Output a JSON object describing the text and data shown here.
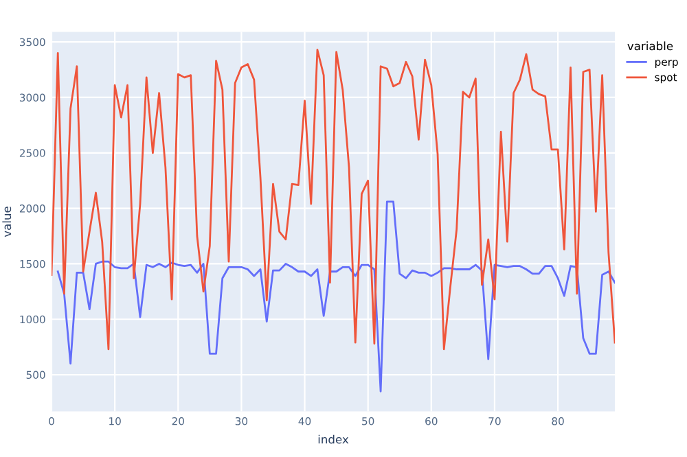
{
  "chart_data": {
    "type": "line",
    "xlabel": "index",
    "ylabel": "value",
    "legend_title": "variable",
    "legend": "top right",
    "grid": true,
    "x": [
      0,
      1,
      2,
      3,
      4,
      5,
      6,
      7,
      8,
      9,
      10,
      11,
      12,
      13,
      14,
      15,
      16,
      17,
      18,
      19,
      20,
      21,
      22,
      23,
      24,
      25,
      26,
      27,
      28,
      29,
      30,
      31,
      32,
      33,
      34,
      35,
      36,
      37,
      38,
      39,
      40,
      41,
      42,
      43,
      44,
      45,
      46,
      47,
      48,
      49,
      50,
      51,
      52,
      53,
      54,
      55,
      56,
      57,
      58,
      59,
      60,
      61,
      62,
      63,
      64,
      65,
      66,
      67,
      68,
      69,
      70,
      71,
      72,
      73,
      74,
      75,
      76,
      77,
      78,
      79,
      80,
      81,
      82,
      83,
      84,
      85,
      86,
      87,
      88,
      89
    ],
    "xlim": [
      0,
      89
    ],
    "xticks": [
      0,
      10,
      20,
      30,
      40,
      50,
      60,
      70,
      80
    ],
    "ylim": [
      170,
      3590
    ],
    "yticks": [
      500,
      1000,
      1500,
      2000,
      2500,
      3000,
      3500
    ],
    "series": [
      {
        "name": "perp",
        "color": "#636efa",
        "values": [
          null,
          1430,
          1230,
          600,
          1420,
          1420,
          1090,
          1500,
          1520,
          1520,
          1470,
          1460,
          1460,
          1500,
          1020,
          1490,
          1470,
          1500,
          1470,
          1510,
          1490,
          1480,
          1490,
          1420,
          1500,
          690,
          690,
          1370,
          1470,
          1470,
          1470,
          1450,
          1390,
          1450,
          980,
          1440,
          1440,
          1500,
          1470,
          1430,
          1430,
          1390,
          1450,
          1030,
          1430,
          1430,
          1470,
          1470,
          1390,
          1490,
          1490,
          1450,
          350,
          2060,
          2060,
          1410,
          1370,
          1440,
          1420,
          1420,
          1390,
          1420,
          1460,
          1460,
          1450,
          1450,
          1450,
          1490,
          1440,
          640,
          1490,
          1480,
          1470,
          1480,
          1480,
          1450,
          1410,
          1410,
          1480,
          1480,
          1370,
          1210,
          1480,
          1470,
          830,
          690,
          690,
          1400,
          1430,
          1330
        ]
      },
      {
        "name": "spot",
        "color": "#ef553b",
        "values": [
          1400,
          3400,
          1230,
          2900,
          3280,
          1430,
          1790,
          2140,
          1700,
          730,
          3110,
          2820,
          3110,
          1370,
          2040,
          3180,
          2500,
          3040,
          2370,
          1180,
          3210,
          3180,
          3200,
          1750,
          1250,
          1660,
          3330,
          3070,
          1520,
          3130,
          3270,
          3300,
          3160,
          2280,
          1170,
          2220,
          1790,
          1720,
          2220,
          2210,
          2970,
          2040,
          3430,
          3200,
          1330,
          3410,
          3070,
          2370,
          790,
          2130,
          2250,
          780,
          3280,
          3260,
          3100,
          3130,
          3320,
          3190,
          2620,
          3340,
          3110,
          2490,
          730,
          1290,
          1810,
          3050,
          3000,
          3170,
          1310,
          1720,
          1180,
          2690,
          1700,
          3040,
          3160,
          3390,
          3070,
          3030,
          3010,
          2530,
          2530,
          1630,
          3270,
          1230,
          3230,
          3250,
          1970,
          3200,
          1600,
          790
        ]
      }
    ]
  }
}
